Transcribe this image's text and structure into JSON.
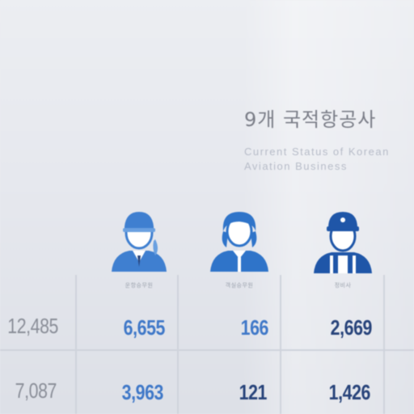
{
  "title": "9개 국적항공사",
  "subtitle_lines": [
    "Current Status of Korean",
    "Aviation Business"
  ],
  "icons": [
    {
      "name": "pilot-icon",
      "color": "#3f7fd0",
      "label": "운항승무원"
    },
    {
      "name": "flight-attendant-icon",
      "color": "#2f74c9",
      "label": "객실승무원"
    },
    {
      "name": "mechanic-icon",
      "color": "#1f56a8",
      "label": "정비사"
    }
  ],
  "table": {
    "rows": [
      {
        "total": "12,485",
        "c1": "6,655",
        "c2": "166",
        "c3": "2,669"
      },
      {
        "total": "7,087",
        "c1": "3,963",
        "c2": "121",
        "c3": "1,426"
      }
    ]
  },
  "colors": {
    "blue": "#3f78c8",
    "navy": "#27437a",
    "gray": "#8a8e98",
    "background": "#e9ebf0"
  }
}
